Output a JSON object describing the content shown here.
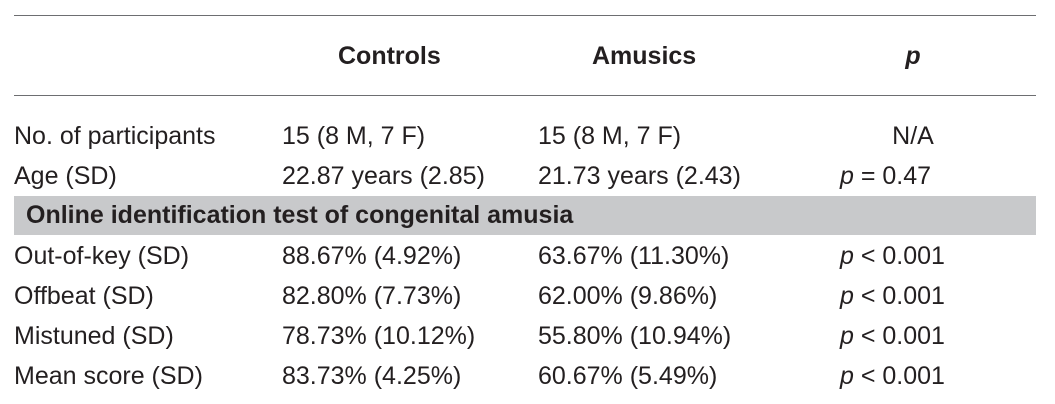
{
  "header": {
    "col0": "",
    "col1": "Controls",
    "col2": "Amusics",
    "col3": "p"
  },
  "rows_top": [
    {
      "label": "No. of participants",
      "controls": "15 (8 M, 7 F)",
      "amusics": "15 (8 M, 7 F)",
      "p_prefix": "",
      "p_value": "N/A"
    },
    {
      "label": "Age (SD)",
      "controls": "22.87 years (2.85)",
      "amusics": "21.73 years (2.43)",
      "p_prefix": "p",
      "p_value": " = 0.47"
    }
  ],
  "section": {
    "title": "Online identification test of congenital amusia"
  },
  "rows_bottom": [
    {
      "label": "Out-of-key (SD)",
      "controls": "88.67% (4.92%)",
      "amusics": "63.67% (11.30%)",
      "p_prefix": "p",
      "p_value": " < 0.001"
    },
    {
      "label": "Offbeat (SD)",
      "controls": "82.80% (7.73%)",
      "amusics": "62.00% (9.86%)",
      "p_prefix": "p",
      "p_value": " < 0.001"
    },
    {
      "label": "Mistuned (SD)",
      "controls": "78.73% (10.12%)",
      "amusics": "55.80% (10.94%)",
      "p_prefix": "p",
      "p_value": " < 0.001"
    },
    {
      "label": "Mean score (SD)",
      "controls": "83.73% (4.25%)",
      "amusics": "60.67% (5.49%)",
      "p_prefix": "p",
      "p_value": " < 0.001"
    }
  ],
  "colors": {
    "text": "#231f20",
    "rule": "#6d6e71",
    "section_band": "#c8c9cb"
  }
}
